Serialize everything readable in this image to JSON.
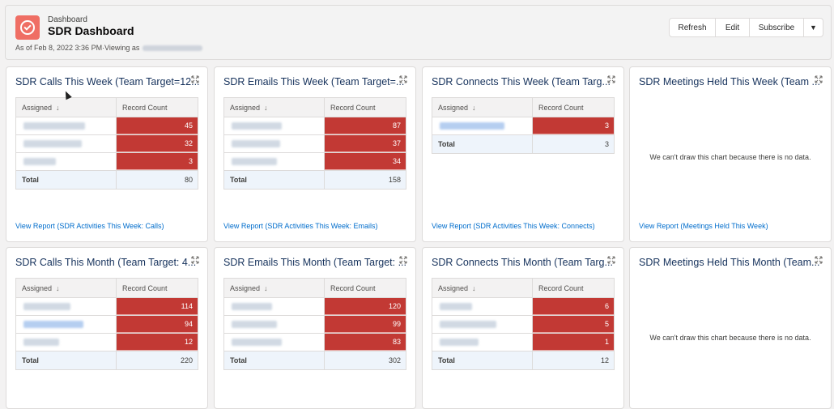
{
  "header": {
    "breadcrumb": "Dashboard",
    "title": "SDR Dashboard",
    "subtitle": "As of Feb 8, 2022 3:36 PM·Viewing as",
    "buttons": {
      "refresh": "Refresh",
      "edit": "Edit",
      "subscribe": "Subscribe",
      "more": "▼"
    }
  },
  "table_headers": {
    "assigned": "Assigned",
    "sort_arrow": "↓",
    "record_count": "Record Count",
    "total": "Total"
  },
  "colors": {
    "bar": "#c23934",
    "link": "#006dcc",
    "brand": "#ef6e64"
  },
  "cards": [
    {
      "title": "SDR Calls This Week (Team Target=12...",
      "values": [
        "45",
        "32",
        "3"
      ],
      "total": "80",
      "link": "View Report (SDR Activities This Week: Calls)"
    },
    {
      "title": "SDR Emails This Week (Team Target=...",
      "values": [
        "87",
        "37",
        "34"
      ],
      "total": "158",
      "link": "View Report (SDR Activities This Week: Emails)"
    },
    {
      "title": "SDR Connects This Week (Team Targ...",
      "values": [
        "3"
      ],
      "total": "3",
      "link": "View Report (SDR Activities This Week: Connects)"
    },
    {
      "title": "SDR Meetings Held This Week (Team ...",
      "no_data": "We can't draw this chart because there is no data.",
      "link": "View Report (Meetings Held This Week)"
    },
    {
      "title": "SDR Calls This Month (Team Target: 4...",
      "values": [
        "114",
        "94",
        "12"
      ],
      "total": "220"
    },
    {
      "title": "SDR Emails This Month (Team Target: ...",
      "values": [
        "120",
        "99",
        "83"
      ],
      "total": "302"
    },
    {
      "title": "SDR Connects This Month (Team Targ...",
      "values": [
        "6",
        "5",
        "1"
      ],
      "total": "12"
    },
    {
      "title": "SDR Meetings Held This Month (Team...",
      "no_data": "We can't draw this chart because there is no data."
    }
  ]
}
